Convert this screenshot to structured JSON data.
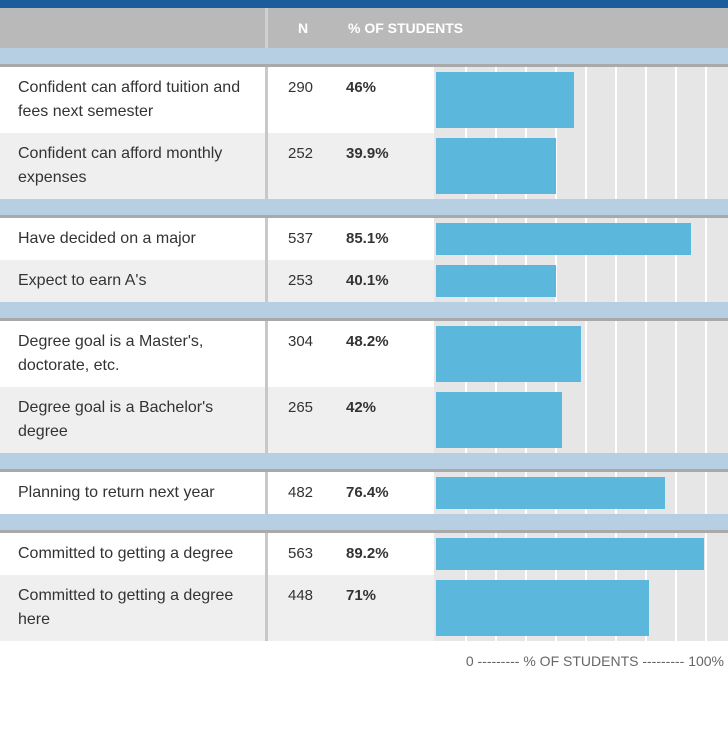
{
  "header": {
    "n": "N",
    "percent": "% OF STUDENTS"
  },
  "groups": [
    [
      {
        "label": "Confident can afford tuition and fees next semester",
        "n": 290,
        "percent": 46,
        "percent_label": "46%"
      },
      {
        "label": "Confident can afford monthly expenses",
        "n": 252,
        "percent": 39.9,
        "percent_label": "39.9%"
      }
    ],
    [
      {
        "label": "Have decided on a major",
        "n": 537,
        "percent": 85.1,
        "percent_label": "85.1%"
      },
      {
        "label": "Expect to earn A's",
        "n": 253,
        "percent": 40.1,
        "percent_label": "40.1%"
      }
    ],
    [
      {
        "label": "Degree goal is a Master's, doctorate, etc.",
        "n": 304,
        "percent": 48.2,
        "percent_label": "48.2%"
      },
      {
        "label": "Degree goal is a Bachelor's degree",
        "n": 265,
        "percent": 42,
        "percent_label": "42%"
      }
    ],
    [
      {
        "label": "Planning to return next year",
        "n": 482,
        "percent": 76.4,
        "percent_label": "76.4%"
      }
    ],
    [
      {
        "label": "Committed to getting a degree",
        "n": 563,
        "percent": 89.2,
        "percent_label": "89.2%"
      },
      {
        "label": "Committed to getting a degree here",
        "n": 448,
        "percent": 71,
        "percent_label": "71%"
      }
    ]
  ],
  "bar_scale": {
    "xlim": [
      0,
      100
    ],
    "xticks": [
      0,
      10,
      20,
      30,
      40,
      50,
      60,
      70,
      80,
      90,
      100
    ],
    "color": "#5bb8dc"
  },
  "axis_caption": "0 --------- % OF STUDENTS --------- 100%"
}
